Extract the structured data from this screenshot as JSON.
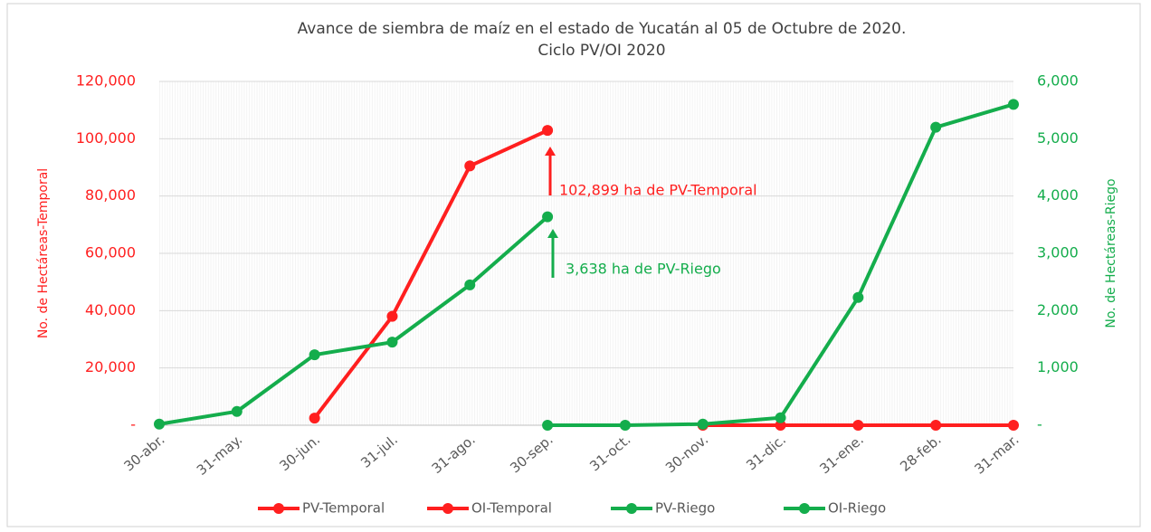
{
  "chart_data": {
    "type": "line",
    "title": [
      "Avance de siembra de maíz en el estado de Yucatán al 05 de Octubre de 2020.",
      "Ciclo PV/OI 2020"
    ],
    "categories": [
      "30-abr.",
      "31-may.",
      "30-jun.",
      "31-jul.",
      "31-ago.",
      "30-sep.",
      "31-oct.",
      "30-nov.",
      "31-dic.",
      "31-ene.",
      "28-feb.",
      "31-mar."
    ],
    "series": [
      {
        "name": "PV-Temporal",
        "color": "#ff1f1f",
        "values": [
          null,
          null,
          2500,
          38000,
          90500,
          102899,
          null,
          null,
          null,
          null,
          null,
          null
        ]
      },
      {
        "name": "OI-Temporal",
        "color": "#ff1f1f",
        "values": [
          null,
          null,
          null,
          null,
          null,
          null,
          null,
          0,
          0,
          0,
          0,
          0
        ]
      },
      {
        "name": "PV-Riego",
        "color": "#14ad4c",
        "axis": "y2",
        "values": [
          20,
          240,
          1230,
          1450,
          2450,
          3638,
          null,
          null,
          null,
          null,
          null,
          null
        ]
      },
      {
        "name": "OI-Riego",
        "color": "#14ad4c",
        "axis": "y2",
        "values": [
          null,
          null,
          null,
          null,
          null,
          0,
          0,
          20,
          130,
          2230,
          5200,
          5600
        ]
      }
    ],
    "ylabel": "No. de Hectáreas-Temporal",
    "y2label": "No. de Hectáreas-Riego",
    "ylim": [
      0,
      120000
    ],
    "yticks": [
      {
        "value": 0,
        "label": "-"
      },
      {
        "value": 20000,
        "label": "20,000"
      },
      {
        "value": 40000,
        "label": "40,000"
      },
      {
        "value": 60000,
        "label": "60,000"
      },
      {
        "value": 80000,
        "label": "80,000"
      },
      {
        "value": 100000,
        "label": "100,000"
      },
      {
        "value": 120000,
        "label": "120,000"
      }
    ],
    "y2lim": [
      0,
      6000
    ],
    "y2ticks": [
      {
        "value": 0,
        "label": "-"
      },
      {
        "value": 1000,
        "label": "1,000"
      },
      {
        "value": 2000,
        "label": "2,000"
      },
      {
        "value": 3000,
        "label": "3,000"
      },
      {
        "value": 4000,
        "label": "4,000"
      },
      {
        "value": 5000,
        "label": "5,000"
      },
      {
        "value": 6000,
        "label": "6,000"
      }
    ],
    "ycolor": "#ff1f1f",
    "y2color": "#14ad4c",
    "grid": true,
    "legend": "bottom",
    "annotations": [
      {
        "text": "102,899 ha de PV-Temporal",
        "color": "#ff1f1f"
      },
      {
        "text": "3,638 ha de PV-Riego",
        "color": "#14ad4c"
      }
    ]
  }
}
